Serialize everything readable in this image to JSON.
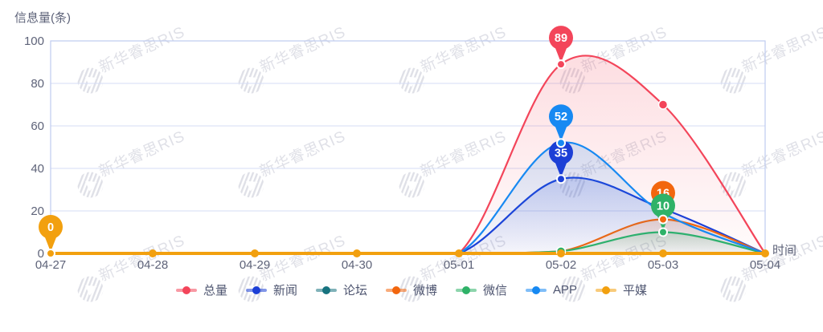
{
  "chart_data": {
    "type": "line",
    "title": "信息量(条)",
    "xlabel": "时间",
    "ylabel": "信息量(条)",
    "x": [
      "04-27",
      "04-28",
      "04-29",
      "04-30",
      "05-01",
      "05-02",
      "05-03",
      "05-04"
    ],
    "ylim": [
      0,
      100
    ],
    "yticks": [
      0,
      20,
      40,
      60,
      80,
      100
    ],
    "grid": true,
    "legend_position": "bottom",
    "series": [
      {
        "name": "总量",
        "color": "#F3455A",
        "values": [
          0,
          0,
          0,
          0,
          0,
          89,
          70,
          0
        ]
      },
      {
        "name": "新闻",
        "color": "#1C3FD6",
        "values": [
          0,
          0,
          0,
          0,
          0,
          35,
          21,
          0
        ]
      },
      {
        "name": "论坛",
        "color": "#17737F",
        "values": [
          0,
          0,
          0,
          0,
          0,
          0,
          0,
          0
        ]
      },
      {
        "name": "微博",
        "color": "#F2660E",
        "values": [
          0,
          0,
          0,
          0,
          0,
          1,
          16,
          0
        ]
      },
      {
        "name": "微信",
        "color": "#2FB268",
        "values": [
          0,
          0,
          0,
          0,
          0,
          1,
          10,
          0
        ]
      },
      {
        "name": "APP",
        "color": "#1789F2",
        "values": [
          0,
          0,
          0,
          0,
          0,
          52,
          19,
          0
        ]
      },
      {
        "name": "平媒",
        "color": "#F2A00F",
        "values": [
          0,
          0,
          0,
          0,
          0,
          0,
          0,
          0
        ],
        "show_all_points": true
      }
    ],
    "point_labels": [
      {
        "series": "平媒",
        "x": "04-27",
        "value": 0
      },
      {
        "series": "总量",
        "x": "05-02",
        "value": 89
      },
      {
        "series": "APP",
        "x": "05-02",
        "value": 52
      },
      {
        "series": "新闻",
        "x": "05-02",
        "value": 35
      },
      {
        "series": "微博",
        "x": "05-03",
        "value": 16
      },
      {
        "series": "微信",
        "x": "05-03",
        "value": 10
      }
    ],
    "extra_point_markers": [
      {
        "series": "总量",
        "x": "05-03"
      },
      {
        "series": "微信",
        "x": "05-02"
      }
    ]
  },
  "watermark": {
    "text": "新华睿思RIS"
  },
  "colors": {
    "axis_border": "#BFCBEF",
    "grid_line": "#D4DCF6",
    "axis_text": "#5E6379",
    "legend_text": "#4E5570",
    "watermark": "#C6C8D4"
  }
}
